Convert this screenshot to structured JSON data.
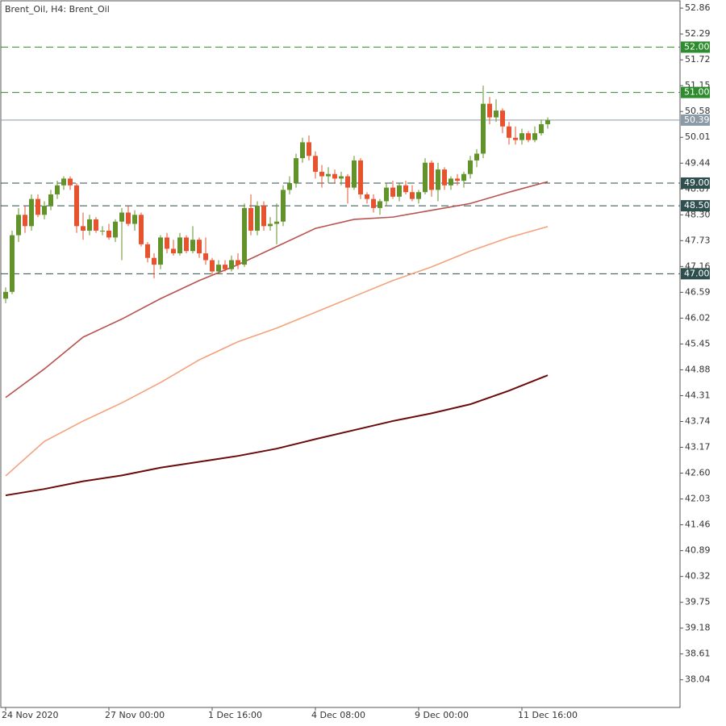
{
  "chart_data": {
    "type": "candlestick",
    "title": "Brent_Oil, H4:  Brent_Oil",
    "up_color": "#62932a",
    "down_color": "#e6542f",
    "ylim": [
      37.43,
      53.04
    ],
    "yticks": [
      52.86,
      52.29,
      51.72,
      51.15,
      50.58,
      50.01,
      49.44,
      48.87,
      {
        "value": 48.3,
        "label": "48.30"
      },
      47.73,
      47.16,
      46.59,
      46.02,
      45.45,
      44.88,
      44.31,
      43.74,
      43.17,
      {
        "value": 42.6,
        "label": "42.60"
      },
      42.03,
      41.46,
      40.89,
      40.32,
      39.75,
      39.18,
      38.61,
      38.04
    ],
    "categories": [
      "24 Nov 2020",
      null,
      null,
      null,
      null,
      null,
      null,
      null,
      null,
      null,
      null,
      null,
      null,
      null,
      null,
      null,
      "27 Nov 00:00",
      null,
      null,
      null,
      null,
      null,
      null,
      null,
      null,
      null,
      null,
      null,
      null,
      null,
      null,
      null,
      "1 Dec 16:00",
      null,
      null,
      null,
      null,
      null,
      null,
      null,
      null,
      null,
      null,
      null,
      null,
      null,
      null,
      null,
      "4 Dec 08:00",
      null,
      null,
      null,
      null,
      null,
      null,
      null,
      null,
      null,
      null,
      null,
      null,
      null,
      null,
      null,
      "9 Dec 00:00",
      null,
      null,
      null,
      null,
      null,
      null,
      null,
      null,
      null,
      null,
      null,
      null,
      null,
      null,
      null,
      "11 Dec 16:00",
      null,
      null,
      null,
      null
    ],
    "ohlc": [
      [
        46.45,
        46.7,
        46.35,
        46.6
      ],
      [
        46.6,
        47.95,
        46.55,
        47.85
      ],
      [
        47.85,
        48.45,
        47.7,
        48.3
      ],
      [
        48.3,
        48.5,
        47.9,
        48.05
      ],
      [
        48.05,
        48.75,
        47.95,
        48.65
      ],
      [
        48.65,
        48.75,
        48.25,
        48.3
      ],
      [
        48.3,
        48.6,
        48.2,
        48.5
      ],
      [
        48.5,
        48.85,
        48.4,
        48.75
      ],
      [
        48.75,
        49.05,
        48.65,
        48.95
      ],
      [
        48.95,
        49.15,
        48.85,
        49.1
      ],
      [
        49.1,
        49.15,
        48.85,
        48.95
      ],
      [
        48.95,
        49.0,
        47.9,
        48.05
      ],
      [
        48.05,
        48.35,
        47.75,
        47.95
      ],
      [
        47.95,
        48.3,
        47.85,
        48.2
      ],
      [
        48.2,
        48.25,
        47.9,
        47.95
      ],
      [
        47.95,
        48.05,
        47.85,
        47.95
      ],
      [
        47.95,
        48.1,
        47.75,
        47.8
      ],
      [
        47.8,
        48.2,
        47.7,
        48.15
      ],
      [
        48.15,
        48.45,
        47.3,
        48.35
      ],
      [
        48.35,
        48.5,
        48.05,
        48.1
      ],
      [
        48.1,
        48.4,
        47.95,
        48.3
      ],
      [
        48.3,
        48.35,
        47.6,
        47.65
      ],
      [
        47.65,
        47.7,
        47.25,
        47.35
      ],
      [
        47.35,
        47.45,
        46.9,
        47.2
      ],
      [
        47.2,
        47.85,
        47.1,
        47.8
      ],
      [
        47.8,
        47.9,
        47.45,
        47.55
      ],
      [
        47.55,
        47.75,
        47.4,
        47.45
      ],
      [
        47.45,
        47.9,
        47.4,
        47.8
      ],
      [
        47.8,
        47.85,
        47.45,
        47.5
      ],
      [
        47.5,
        48.05,
        47.45,
        47.75
      ],
      [
        47.75,
        47.8,
        47.35,
        47.45
      ],
      [
        47.45,
        47.8,
        47.2,
        47.3
      ],
      [
        47.3,
        47.35,
        46.95,
        47.05
      ],
      [
        47.05,
        47.3,
        47.0,
        47.2
      ],
      [
        47.2,
        47.3,
        47.05,
        47.1
      ],
      [
        47.1,
        47.4,
        47.05,
        47.3
      ],
      [
        47.3,
        47.45,
        47.1,
        47.2
      ],
      [
        47.2,
        48.55,
        47.15,
        48.45
      ],
      [
        48.45,
        48.75,
        47.85,
        47.95
      ],
      [
        47.95,
        48.6,
        47.85,
        48.5
      ],
      [
        48.5,
        48.6,
        47.95,
        48.05
      ],
      [
        48.05,
        48.25,
        47.95,
        48.1
      ],
      [
        48.1,
        48.55,
        47.65,
        48.15
      ],
      [
        48.15,
        48.95,
        48.05,
        48.85
      ],
      [
        48.85,
        49.15,
        48.75,
        49.0
      ],
      [
        49.0,
        49.65,
        48.9,
        49.55
      ],
      [
        49.55,
        50.0,
        49.45,
        49.9
      ],
      [
        49.9,
        50.05,
        49.5,
        49.6
      ],
      [
        49.6,
        49.7,
        49.1,
        49.25
      ],
      [
        49.25,
        49.4,
        48.9,
        49.15
      ],
      [
        49.15,
        49.35,
        49.0,
        49.2
      ],
      [
        49.2,
        49.3,
        49.0,
        49.1
      ],
      [
        49.1,
        49.25,
        48.95,
        49.15
      ],
      [
        49.15,
        49.2,
        48.55,
        48.9
      ],
      [
        48.9,
        49.6,
        48.85,
        49.5
      ],
      [
        49.5,
        49.55,
        48.65,
        48.75
      ],
      [
        48.75,
        48.8,
        48.55,
        48.65
      ],
      [
        48.65,
        48.75,
        48.35,
        48.45
      ],
      [
        48.45,
        48.65,
        48.3,
        48.6
      ],
      [
        48.6,
        49.0,
        48.5,
        48.9
      ],
      [
        48.9,
        49.05,
        48.65,
        48.7
      ],
      [
        48.7,
        49.0,
        48.6,
        48.95
      ],
      [
        48.95,
        49.05,
        48.75,
        48.8
      ],
      [
        48.8,
        48.95,
        48.6,
        48.65
      ],
      [
        48.65,
        48.85,
        48.55,
        48.8
      ],
      [
        48.8,
        49.55,
        48.75,
        49.45
      ],
      [
        49.45,
        49.5,
        48.7,
        48.85
      ],
      [
        48.85,
        49.45,
        48.6,
        49.3
      ],
      [
        49.3,
        49.35,
        48.85,
        48.95
      ],
      [
        48.95,
        49.15,
        48.85,
        49.1
      ],
      [
        49.1,
        49.2,
        48.95,
        49.05
      ],
      [
        49.05,
        49.25,
        48.9,
        49.2
      ],
      [
        49.2,
        49.6,
        49.1,
        49.5
      ],
      [
        49.5,
        49.75,
        49.35,
        49.65
      ],
      [
        49.65,
        51.15,
        49.55,
        50.75
      ],
      [
        50.75,
        50.9,
        50.3,
        50.45
      ],
      [
        50.45,
        50.85,
        50.35,
        50.6
      ],
      [
        50.6,
        50.65,
        50.1,
        50.25
      ],
      [
        50.25,
        50.35,
        49.85,
        50.0
      ],
      [
        50.0,
        50.25,
        49.85,
        49.95
      ],
      [
        49.95,
        50.2,
        49.85,
        50.1
      ],
      [
        50.1,
        50.15,
        49.9,
        49.95
      ],
      [
        49.95,
        50.25,
        49.9,
        50.1
      ],
      [
        50.1,
        50.4,
        50.05,
        50.3
      ],
      [
        50.3,
        50.45,
        50.2,
        50.39
      ]
    ],
    "lines": [
      {
        "color": "#b85450",
        "x": [
          0,
          6,
          12,
          18,
          24,
          30,
          36,
          42,
          48,
          54,
          60,
          66,
          72,
          78,
          84
        ],
        "values": [
          44.27,
          44.9,
          45.6,
          46.0,
          46.45,
          46.85,
          47.2,
          47.6,
          48.0,
          48.2,
          48.25,
          48.4,
          48.55,
          48.8,
          49.03
        ]
      },
      {
        "color": "#f4a27c",
        "x": [
          0,
          6,
          12,
          18,
          24,
          30,
          36,
          42,
          48,
          54,
          60,
          66,
          72,
          78,
          84
        ],
        "values": [
          42.54,
          43.3,
          43.75,
          44.15,
          44.6,
          45.1,
          45.5,
          45.8,
          46.15,
          46.5,
          46.85,
          47.15,
          47.5,
          47.8,
          48.04
        ]
      },
      {
        "color": "#6b0a0a",
        "x": [
          0,
          6,
          12,
          18,
          24,
          30,
          36,
          42,
          48,
          54,
          60,
          66,
          72,
          78,
          84
        ],
        "values": [
          42.11,
          42.25,
          42.42,
          42.55,
          42.72,
          42.85,
          42.98,
          43.14,
          43.35,
          43.55,
          43.75,
          43.92,
          44.12,
          44.42,
          44.76
        ]
      }
    ],
    "levels": [
      {
        "value": 52,
        "label": "52.00",
        "color": "#2e8b2e"
      },
      {
        "value": 51,
        "label": "51.00",
        "color": "#2e8b2e"
      },
      {
        "value": 49,
        "label": "49.00",
        "color": "#2f4f4f"
      },
      {
        "value": 48.5,
        "label": "48.50",
        "color": "#2f4f4f"
      },
      {
        "value": 47,
        "label": "47.00",
        "color": "#2f4f4f"
      }
    ],
    "current_price": {
      "value": 50.39,
      "label": "50.39",
      "color": "#8a9aa6"
    }
  }
}
